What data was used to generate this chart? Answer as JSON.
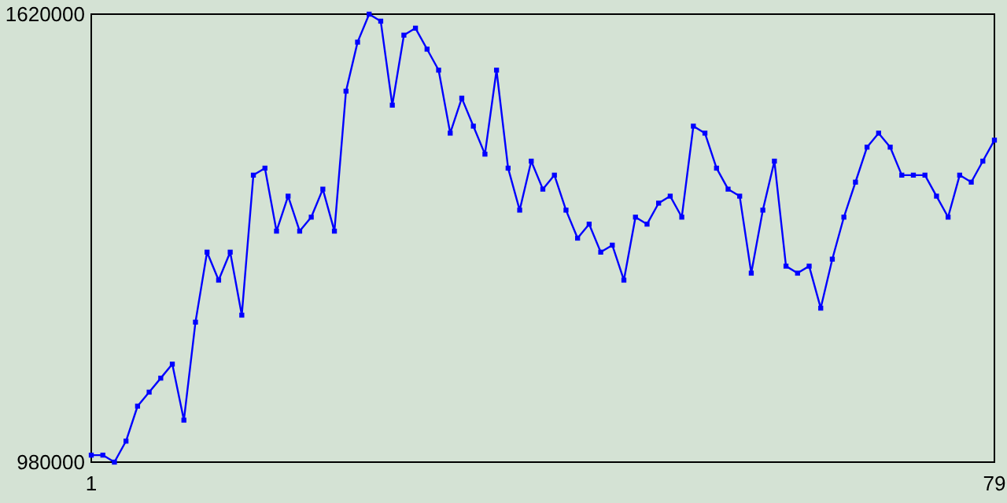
{
  "chart_data": {
    "type": "line",
    "x": [
      1,
      2,
      3,
      4,
      5,
      6,
      7,
      8,
      9,
      10,
      11,
      12,
      13,
      14,
      15,
      16,
      17,
      18,
      19,
      20,
      21,
      22,
      23,
      24,
      25,
      26,
      27,
      28,
      29,
      30,
      31,
      32,
      33,
      34,
      35,
      36,
      37,
      38,
      39,
      40,
      41,
      42,
      43,
      44,
      45,
      46,
      47,
      48,
      49,
      50,
      51,
      52,
      53,
      54,
      55,
      56,
      57,
      58,
      59,
      60,
      61,
      62,
      63,
      64,
      65,
      66,
      67,
      68,
      69,
      70,
      71,
      72,
      73,
      74,
      75,
      76,
      77,
      78,
      79
    ],
    "series": [
      {
        "color": "#0000ff",
        "values": [
          990000,
          990000,
          980000,
          1010000,
          1060000,
          1080000,
          1100000,
          1120000,
          1040000,
          1180000,
          1280000,
          1240000,
          1280000,
          1190000,
          1390000,
          1400000,
          1310000,
          1360000,
          1310000,
          1330000,
          1370000,
          1310000,
          1510000,
          1580000,
          1620000,
          1610000,
          1490000,
          1590000,
          1600000,
          1570000,
          1540000,
          1450000,
          1500000,
          1460000,
          1420000,
          1540000,
          1400000,
          1340000,
          1410000,
          1370000,
          1390000,
          1340000,
          1300000,
          1320000,
          1280000,
          1290000,
          1240000,
          1330000,
          1320000,
          1350000,
          1360000,
          1330000,
          1460000,
          1450000,
          1400000,
          1370000,
          1360000,
          1250000,
          1340000,
          1410000,
          1260000,
          1250000,
          1260000,
          1200000,
          1270000,
          1330000,
          1380000,
          1430000,
          1450000,
          1430000,
          1390000,
          1390000,
          1390000,
          1360000,
          1330000,
          1390000,
          1380000,
          1410000,
          1440000
        ]
      }
    ],
    "xlim": [
      1,
      79
    ],
    "xticks": [
      1,
      79
    ],
    "ylim": [
      980000,
      1620000
    ],
    "yticks": [
      980000,
      1620000
    ],
    "marker": "square"
  }
}
